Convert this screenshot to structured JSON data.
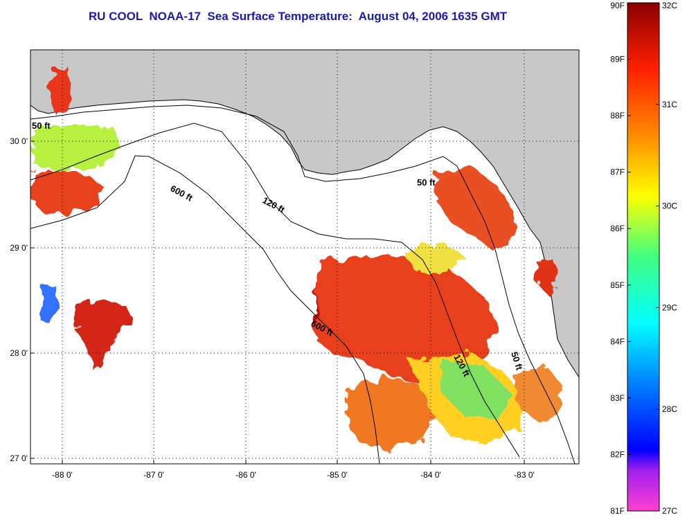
{
  "title": "RU COOL  NOAA-17  Sea Surface Temperature:  August 04, 2006 1635 GMT",
  "map": {
    "lon_range": [
      -88.33,
      -82.43
    ],
    "lat_range": [
      26.95,
      30.85
    ],
    "x_ticks": [
      "-88 0'",
      "-87 0'",
      "-86 0'",
      "-85 0'",
      "-84 0'",
      "-83 0'"
    ],
    "y_ticks": [
      "30 0'",
      "29 0'",
      "28 0'",
      "27 0'"
    ],
    "contours": [
      {
        "label": "50 ft"
      },
      {
        "label": "600 ft"
      },
      {
        "label": "120 ft"
      },
      {
        "label": "50 ft"
      },
      {
        "label": "600 ft"
      },
      {
        "label": "120 ft"
      },
      {
        "label": "50 ft"
      }
    ],
    "colors": {
      "land": "#c8c8c8",
      "no_data": "#ffffff"
    }
  },
  "colorbar": {
    "fahrenheit": [
      "90F",
      "89F",
      "88F",
      "87F",
      "86F",
      "85F",
      "84F",
      "83F",
      "82F",
      "81F"
    ],
    "celsius": [
      "32C",
      "31C",
      "30C",
      "29C",
      "28C",
      "27C"
    ],
    "range_f": [
      81,
      90
    ],
    "range_c": [
      27,
      32
    ]
  }
}
